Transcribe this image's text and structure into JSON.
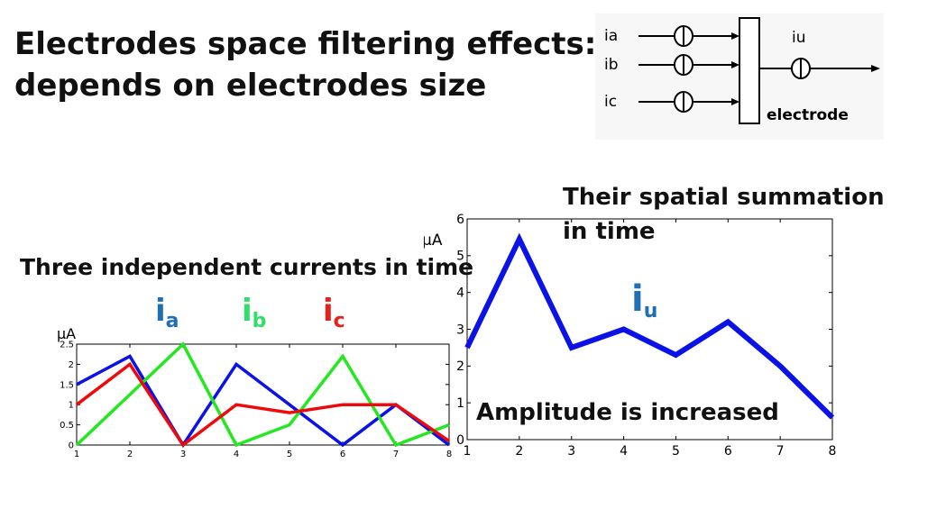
{
  "title": {
    "line1": "Electrodes space filtering effects:",
    "line2": "depends on electrodes size"
  },
  "diagram": {
    "inputs": [
      "ia",
      "ib",
      "ic"
    ],
    "output": "iu",
    "block_label": "electrode"
  },
  "summation_caption": {
    "line1": "Their spatial summation",
    "line2": "in time"
  },
  "left_caption": "Three independent currents in time",
  "amplitude_note": "Amplitude is increased",
  "symbols": {
    "a": {
      "base": "i",
      "sub": "a",
      "color": "#1f6fb5"
    },
    "b": {
      "base": "i",
      "sub": "b",
      "color": "#2ee06a"
    },
    "c": {
      "base": "i",
      "sub": "c",
      "color": "#e8201a"
    },
    "u": {
      "base": "i",
      "sub": "u",
      "color": "#1f6fb5"
    }
  },
  "chart_data": [
    {
      "type": "line",
      "ylabel": "μA",
      "x": [
        1,
        2,
        3,
        4,
        5,
        6,
        7,
        8
      ],
      "xlim": [
        1,
        8
      ],
      "ylim": [
        0,
        2.5
      ],
      "yticks": [
        0,
        0.5,
        1,
        1.5,
        2,
        2.5
      ],
      "ytick_labels": [
        "0",
        "0.5",
        "1",
        "1.5",
        "2",
        "2.5"
      ],
      "xtick_labels": [
        "1",
        "2",
        "3",
        "4",
        "5",
        "6",
        "7",
        "8"
      ],
      "series": [
        {
          "color": "#0b12e8",
          "values": [
            1.5,
            2.2,
            0,
            2.0,
            1.0,
            0,
            1.0,
            0
          ]
        },
        {
          "color": "#22e81e",
          "values": [
            0,
            1.25,
            2.5,
            0,
            0.5,
            2.2,
            0,
            0.5
          ]
        },
        {
          "color": "#ee0a0a",
          "values": [
            1.0,
            2.0,
            0,
            1.0,
            0.8,
            1.0,
            1.0,
            0.1
          ]
        }
      ]
    },
    {
      "type": "line",
      "ylabel": "μA",
      "x": [
        1,
        2,
        3,
        4,
        5,
        6,
        7,
        8
      ],
      "xlim": [
        1,
        8
      ],
      "ylim": [
        0,
        6
      ],
      "yticks": [
        0,
        1,
        2,
        3,
        4,
        5,
        6
      ],
      "ytick_labels": [
        "0",
        "1",
        "2",
        "3",
        "4",
        "5",
        "6"
      ],
      "xtick_labels": [
        "1",
        "2",
        "3",
        "4",
        "5",
        "6",
        "7",
        "8"
      ],
      "series": [
        {
          "color": "#0b12e8",
          "values": [
            2.5,
            5.45,
            2.5,
            3.0,
            2.3,
            3.2,
            2.0,
            0.6
          ]
        }
      ]
    }
  ]
}
